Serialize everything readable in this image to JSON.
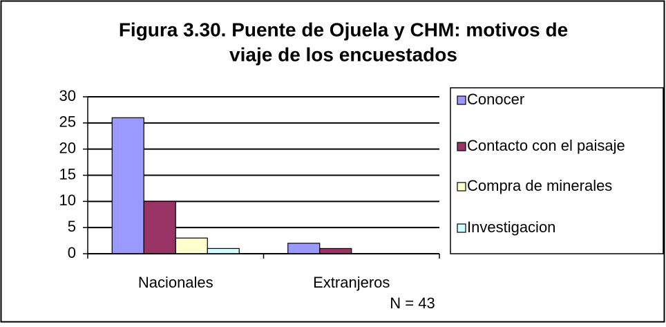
{
  "chart_data": {
    "type": "bar",
    "title": "Figura 3.30. Puente de Ojuela y CHM: motivos de",
    "subtitle": "viaje de los encuestados",
    "categories": [
      "Nacionales",
      "Extranjeros"
    ],
    "series": [
      {
        "name": "Conocer",
        "color": "#9999ff",
        "values": [
          26,
          2
        ]
      },
      {
        "name": "Contacto con el paisaje",
        "color": "#993366",
        "values": [
          10,
          1
        ]
      },
      {
        "name": "Compra de minerales",
        "color": "#ffffcc",
        "values": [
          3,
          0
        ]
      },
      {
        "name": "Investigacion",
        "color": "#ccffff",
        "values": [
          1,
          0
        ]
      }
    ],
    "ylim": [
      0,
      30
    ],
    "yticks": [
      0,
      5,
      10,
      15,
      20,
      25,
      30
    ],
    "grid": true,
    "legend": "right",
    "annotation": "N = 43"
  }
}
